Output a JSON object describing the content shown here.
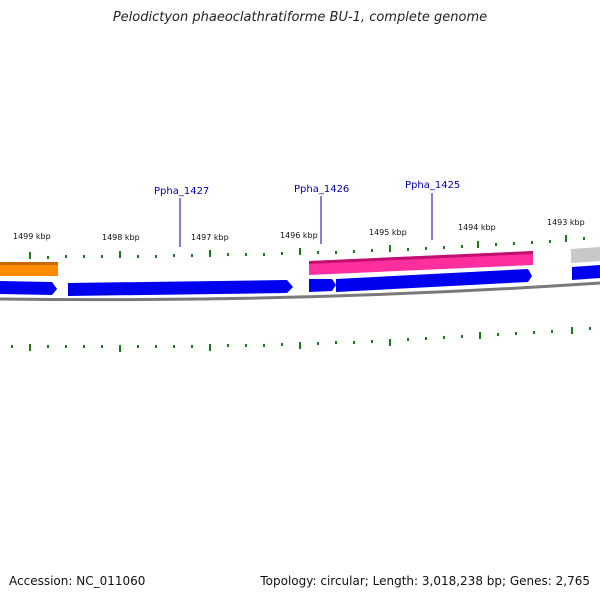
{
  "title": "Pelodictyon phaeoclathratiforme BU-1, complete genome",
  "footer": {
    "accession": "Accession: NC_011060",
    "summary": "Topology: circular; Length: 3,018,238 bp; Genes: 2,765"
  },
  "track": {
    "kbp_labels": [
      "1499 kbp",
      "1498 kbp",
      "1497 kbp",
      "1496 kbp",
      "1495 kbp",
      "1494 kbp",
      "1493 kbp"
    ],
    "gene_labels": [
      "Ppha_1427",
      "Ppha_1426",
      "Ppha_1425"
    ]
  },
  "colors": {
    "forward_gene": "#ff2fa0",
    "reverse_gene": "#0000f0",
    "rna_gene": "#ff8c00",
    "other_gene": "#c8c8c8",
    "backbone": "#7a7a7a",
    "ticks": "#1a7a1a",
    "label": "#0000b0"
  }
}
